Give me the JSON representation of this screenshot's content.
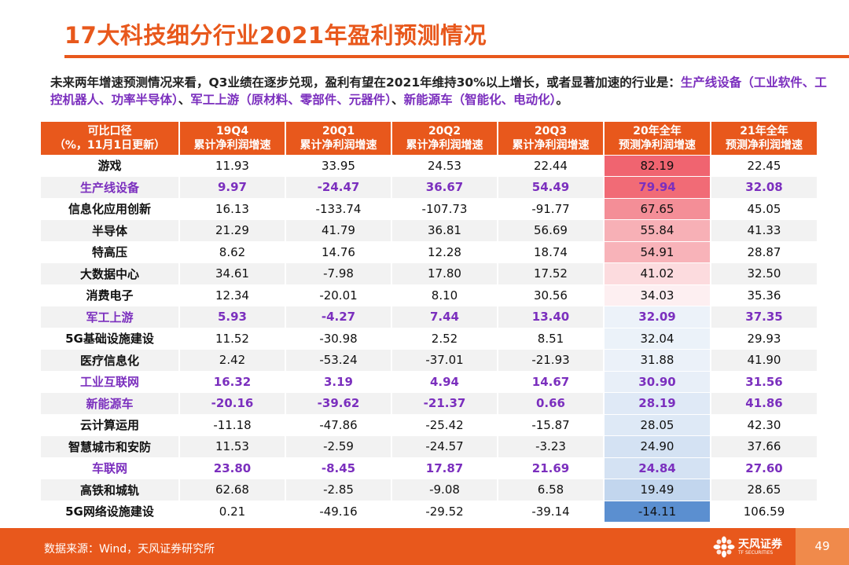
{
  "title": "17大科技细分行业2021年盈利预测情况",
  "intro": {
    "p1": "未来两年增速预测情况来看，Q3业绩在逐步兑现，盈利有望在2021年维持30%以上增长，或者显著加速的行业是：",
    "h1": "生产线设备（工业软件、工控机器人、功率半导体）",
    "p2": "、",
    "h2": "军工上游（原材料、零部件、元器件）",
    "p3": "、",
    "h3": "新能源车（智能化、电动化）",
    "p4": "。"
  },
  "table": {
    "headers": [
      {
        "l1": "可比口径",
        "l2": "（%，11月1日更新）"
      },
      {
        "l1": "19Q4",
        "l2": "累计净利润增速"
      },
      {
        "l1": "20Q1",
        "l2": "累计净利润增速"
      },
      {
        "l1": "20Q2",
        "l2": "累计净利润增速"
      },
      {
        "l1": "20Q3",
        "l2": "累计净利润增速"
      },
      {
        "l1": "20年全年",
        "l2": "预测净利润增速"
      },
      {
        "l1": "21年全年",
        "l2": "预测净利润增速"
      }
    ],
    "rows": [
      {
        "name": "游戏",
        "v19q4": "11.93",
        "v20q1": "33.95",
        "v20q2": "24.53",
        "v20q3": "22.44",
        "v20fy": "82.19",
        "v21fy": "22.45",
        "highlight": false
      },
      {
        "name": "生产线设备",
        "v19q4": "9.97",
        "v20q1": "-24.47",
        "v20q2": "36.67",
        "v20q3": "54.49",
        "v20fy": "79.94",
        "v21fy": "32.08",
        "highlight": true
      },
      {
        "name": "信息化应用创新",
        "v19q4": "16.13",
        "v20q1": "-133.74",
        "v20q2": "-107.73",
        "v20q3": "-91.77",
        "v20fy": "67.65",
        "v21fy": "45.05",
        "highlight": false
      },
      {
        "name": "半导体",
        "v19q4": "21.29",
        "v20q1": "41.79",
        "v20q2": "36.81",
        "v20q3": "56.69",
        "v20fy": "55.84",
        "v21fy": "41.33",
        "highlight": false
      },
      {
        "name": "特高压",
        "v19q4": "8.62",
        "v20q1": "14.76",
        "v20q2": "12.28",
        "v20q3": "18.74",
        "v20fy": "54.91",
        "v21fy": "28.87",
        "highlight": false
      },
      {
        "name": "大数据中心",
        "v19q4": "34.61",
        "v20q1": "-7.98",
        "v20q2": "17.80",
        "v20q3": "17.52",
        "v20fy": "41.02",
        "v21fy": "32.50",
        "highlight": false
      },
      {
        "name": "消费电子",
        "v19q4": "12.34",
        "v20q1": "-20.01",
        "v20q2": "8.10",
        "v20q3": "30.56",
        "v20fy": "34.03",
        "v21fy": "35.36",
        "highlight": false
      },
      {
        "name": "军工上游",
        "v19q4": "5.93",
        "v20q1": "-4.27",
        "v20q2": "7.44",
        "v20q3": "13.40",
        "v20fy": "32.09",
        "v21fy": "37.35",
        "highlight": true
      },
      {
        "name": "5G基础设施建设",
        "v19q4": "11.52",
        "v20q1": "-30.98",
        "v20q2": "2.52",
        "v20q3": "8.51",
        "v20fy": "32.04",
        "v21fy": "29.93",
        "highlight": false
      },
      {
        "name": "医疗信息化",
        "v19q4": "2.42",
        "v20q1": "-53.24",
        "v20q2": "-37.01",
        "v20q3": "-21.93",
        "v20fy": "31.88",
        "v21fy": "41.90",
        "highlight": false
      },
      {
        "name": "工业互联网",
        "v19q4": "16.32",
        "v20q1": "3.19",
        "v20q2": "4.94",
        "v20q3": "14.67",
        "v20fy": "30.90",
        "v21fy": "31.56",
        "highlight": true
      },
      {
        "name": "新能源车",
        "v19q4": "-20.16",
        "v20q1": "-39.62",
        "v20q2": "-21.37",
        "v20q3": "0.66",
        "v20fy": "28.19",
        "v21fy": "41.86",
        "highlight": true
      },
      {
        "name": "云计算运用",
        "v19q4": "-11.18",
        "v20q1": "-47.86",
        "v20q2": "-25.42",
        "v20q3": "-15.87",
        "v20fy": "28.05",
        "v21fy": "42.30",
        "highlight": false
      },
      {
        "name": "智慧城市和安防",
        "v19q4": "11.53",
        "v20q1": "-2.59",
        "v20q2": "-24.57",
        "v20q3": "-3.23",
        "v20fy": "24.90",
        "v21fy": "37.66",
        "highlight": false
      },
      {
        "name": "车联网",
        "v19q4": "23.80",
        "v20q1": "-8.45",
        "v20q2": "17.87",
        "v20q3": "21.69",
        "v20fy": "24.84",
        "v21fy": "27.60",
        "highlight": true
      },
      {
        "name": "高铁和城轨",
        "v19q4": "62.68",
        "v20q1": "-2.85",
        "v20q2": "-9.08",
        "v20q3": "6.58",
        "v20fy": "19.49",
        "v21fy": "28.65",
        "highlight": false
      },
      {
        "name": "5G网络设施建设",
        "v19q4": "0.21",
        "v20q1": "-49.16",
        "v20q2": "-29.52",
        "v20q3": "-39.14",
        "v20fy": "-14.11",
        "v21fy": "106.59",
        "highlight": false
      }
    ]
  },
  "footer": {
    "source": "数据来源：Wind，天风证券研究所",
    "logo_cn": "天风证券",
    "logo_en": "TF SECURITIES",
    "page": "49"
  },
  "colors": {
    "brand_orange": "#e8581c",
    "highlight_purple": "#7b2fbe",
    "heat_high": "#f06470",
    "heat_low": "#5b8fd0"
  }
}
